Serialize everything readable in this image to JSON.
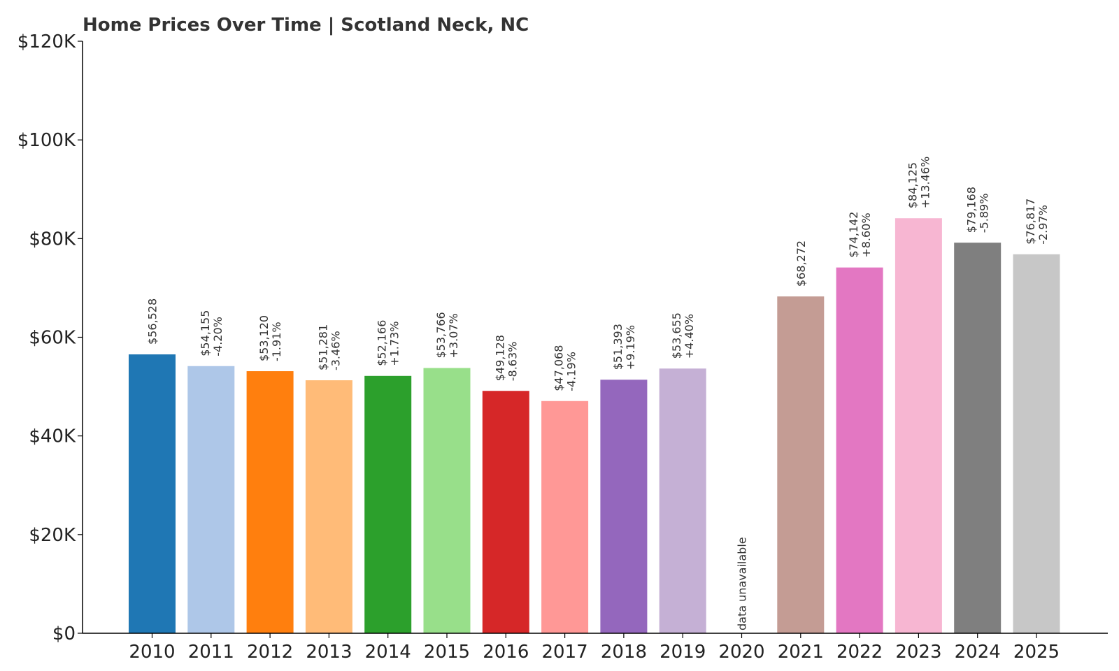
{
  "chart_data": {
    "type": "bar",
    "title": "Home Prices Over Time | Scotland Neck, NC",
    "xlabel": "",
    "ylabel": "",
    "ylim": [
      0,
      120000
    ],
    "yticks": [
      0,
      20000,
      40000,
      60000,
      80000,
      100000,
      120000
    ],
    "ytick_labels": [
      "$0",
      "$20K",
      "$40K",
      "$60K",
      "$80K",
      "$100K",
      "$120K"
    ],
    "grid": false,
    "categories": [
      "2010",
      "2011",
      "2012",
      "2013",
      "2014",
      "2015",
      "2016",
      "2017",
      "2018",
      "2019",
      "2020",
      "2021",
      "2022",
      "2023",
      "2024",
      "2025"
    ],
    "values": [
      56528,
      54155,
      53120,
      51281,
      52166,
      53766,
      49128,
      47068,
      51393,
      53655,
      null,
      68272,
      74142,
      84125,
      79168,
      76817
    ],
    "value_labels": [
      "$56,528",
      "$54,155",
      "$53,120",
      "$51,281",
      "$52,166",
      "$53,766",
      "$49,128",
      "$47,068",
      "$51,393",
      "$53,655",
      "data unavailable",
      "$68,272",
      "$74,142",
      "$84,125",
      "$79,168",
      "$76,817"
    ],
    "change_labels": [
      "",
      "-4.20%",
      "-1.91%",
      "-3.46%",
      "+1.73%",
      "+3.07%",
      "-8.63%",
      "-4.19%",
      "+9.19%",
      "+4.40%",
      "",
      "",
      "+8.60%",
      "+13.46%",
      "-5.89%",
      "-2.97%"
    ],
    "colors": [
      "#1f77b4",
      "#aec7e8",
      "#ff7f0e",
      "#ffbb78",
      "#2ca02c",
      "#98df8a",
      "#d62728",
      "#ff9896",
      "#9467bd",
      "#c5b0d5",
      "#8c564b",
      "#c49c94",
      "#e377c2",
      "#f7b6d2",
      "#7f7f7f",
      "#c7c7c7"
    ]
  }
}
